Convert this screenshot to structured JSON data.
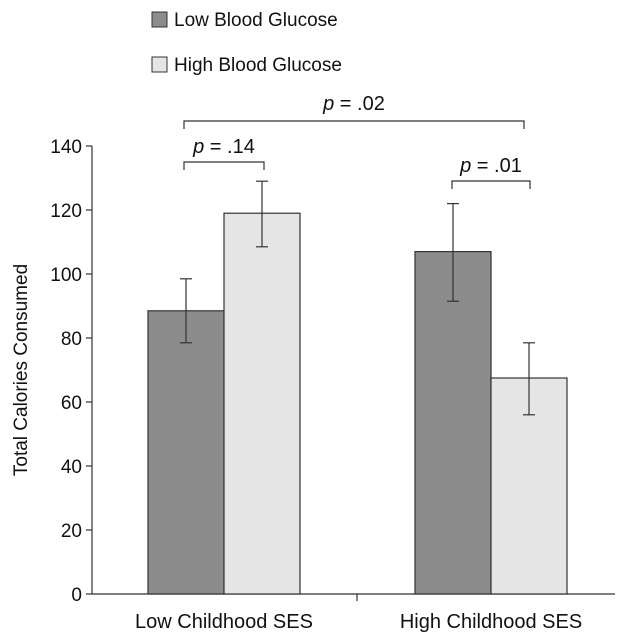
{
  "chart_data": {
    "type": "bar",
    "title": "",
    "xlabel": "",
    "ylabel": "Total Calories Consumed",
    "ylim": [
      0,
      140
    ],
    "yticks": [
      0,
      20,
      40,
      60,
      80,
      100,
      120,
      140
    ],
    "categories": [
      "Low Childhood SES",
      "High Childhood SES"
    ],
    "series": [
      {
        "name": "Low Blood Glucose",
        "color": "#8c8c8c",
        "values": [
          88.5,
          107
        ],
        "error_low": [
          78.5,
          91.5
        ],
        "error_high": [
          98.5,
          122
        ]
      },
      {
        "name": "High Blood Glucose",
        "color": "#e5e5e5",
        "values": [
          119,
          67.5
        ],
        "error_low": [
          108.5,
          56
        ],
        "error_high": [
          129,
          78.5
        ]
      }
    ],
    "legend_position": "top-left",
    "grid": false,
    "annotations": [
      {
        "text": "p = .14",
        "italic": "p",
        "rest": " = .14",
        "span": "within-category-1"
      },
      {
        "text": "p = .01",
        "italic": "p",
        "rest": " = .01",
        "span": "within-category-2"
      },
      {
        "text": "p = .02",
        "italic": "p",
        "rest": " = .02",
        "span": "across-categories"
      }
    ]
  }
}
